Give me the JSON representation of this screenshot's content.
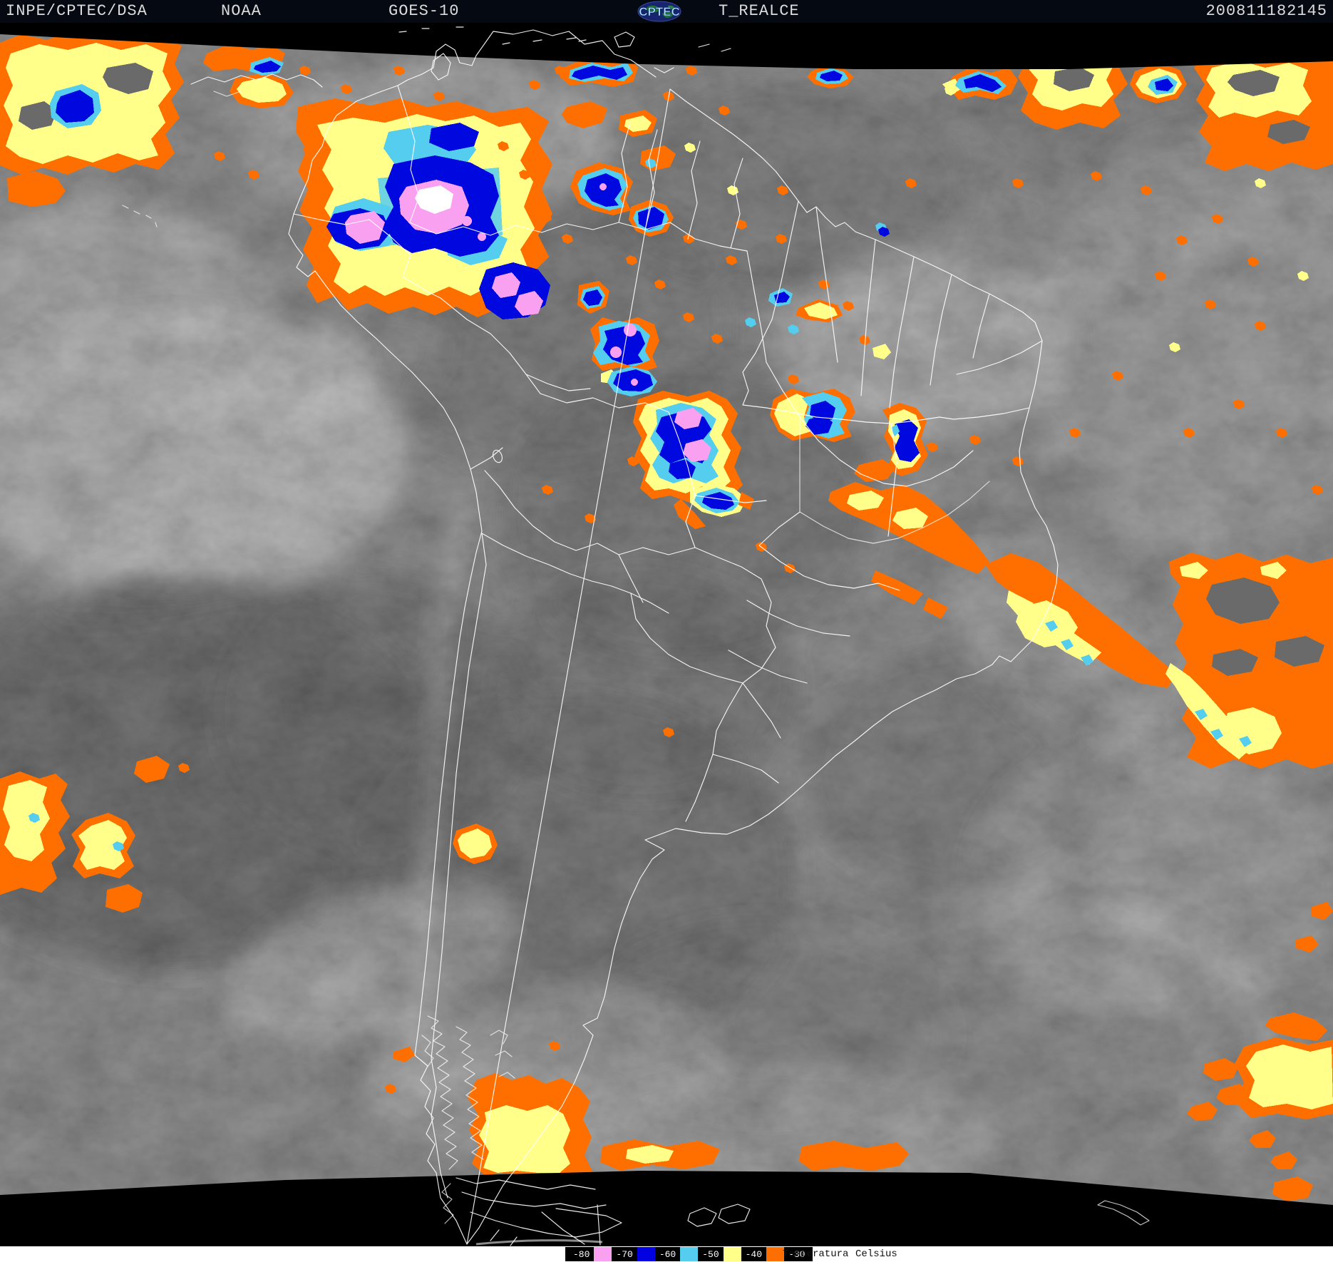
{
  "header": {
    "agency": "INPE/CPTEC/DSA",
    "org": "NOAA",
    "satellite": "GOES-10",
    "logo_text": "CPTEC",
    "product": "T_REALCE",
    "timestamp": "200811182145"
  },
  "legend": {
    "temperature_label": "Temperatura",
    "unit_label": "Celsius",
    "entries": [
      {
        "label": "-80",
        "swatch": "#f9a0f0"
      },
      {
        "label": "-70",
        "swatch": "#0000e0"
      },
      {
        "label": "-60",
        "swatch": "#55cdee"
      },
      {
        "label": "-50",
        "swatch": "#ffff8a"
      },
      {
        "label": "-40",
        "swatch": "#ff6f00"
      },
      {
        "label": "-30",
        "swatch": null
      }
    ]
  },
  "palette": {
    "pink": "#f9a0f0",
    "blue": "#0008e0",
    "cyan": "#55cdee",
    "yellow": "#ffff8a",
    "orange": "#ff6f00",
    "white_core": "#ffffff",
    "header_bg": "#050a12",
    "header_fg": "#dcdcdc",
    "map_bg": "#666666",
    "border": "#ffffff"
  }
}
